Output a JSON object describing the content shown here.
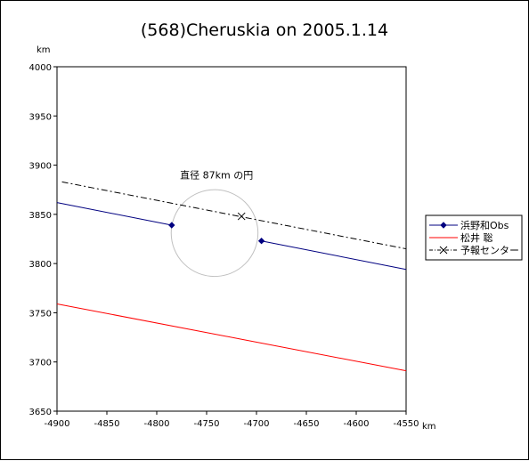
{
  "chart_data": {
    "type": "line",
    "title": "(568)Cheruskia on 2005.1.14",
    "xlabel": "km",
    "ylabel": "km",
    "xlim": [
      -4900,
      -4550
    ],
    "ylim": [
      3650,
      4000
    ],
    "x_ticks": [
      -4900,
      -4850,
      -4800,
      -4750,
      -4700,
      -4650,
      -4600,
      -4550
    ],
    "y_ticks": [
      3650,
      3700,
      3750,
      3800,
      3850,
      3900,
      3950,
      4000
    ],
    "x_tick_labels": [
      "-4900",
      "-4850",
      "-4800",
      "-4750",
      "-4700",
      "-4650",
      "-4600",
      "-4550"
    ],
    "y_tick_labels": [
      "3650",
      "3700",
      "3750",
      "3800",
      "3850",
      "3900",
      "3950",
      "4000"
    ],
    "grid": false,
    "legend_position": "right",
    "series": [
      {
        "name": "浜野和Obs",
        "color": "#000080",
        "style": "solid",
        "segments": [
          [
            [
              -4900,
              3862
            ],
            [
              -4785,
              3839
            ]
          ],
          [
            [
              -4695,
              3823
            ],
            [
              -4550,
              3794
            ]
          ]
        ],
        "markers": [
          [
            -4785,
            3839
          ],
          [
            -4695,
            3823
          ]
        ],
        "marker": "diamond"
      },
      {
        "name": "松井 聡",
        "color": "#ff0000",
        "style": "solid",
        "segments": [
          [
            [
              -4900,
              3759
            ],
            [
              -4550,
              3691
            ]
          ]
        ]
      },
      {
        "name": "予報センター",
        "color": "#000000",
        "style": "dashdot",
        "segments": [
          [
            [
              -4895,
              3883
            ],
            [
              -4550,
              3815
            ]
          ]
        ],
        "markers": [
          [
            -4715,
            3848
          ]
        ],
        "marker": "x"
      }
    ],
    "circle": {
      "center": [
        -4742,
        3831
      ],
      "diameter": 87,
      "color": "#c0c0c0",
      "label": "直径 87km の円",
      "label_at": [
        -4740,
        3890
      ]
    }
  }
}
